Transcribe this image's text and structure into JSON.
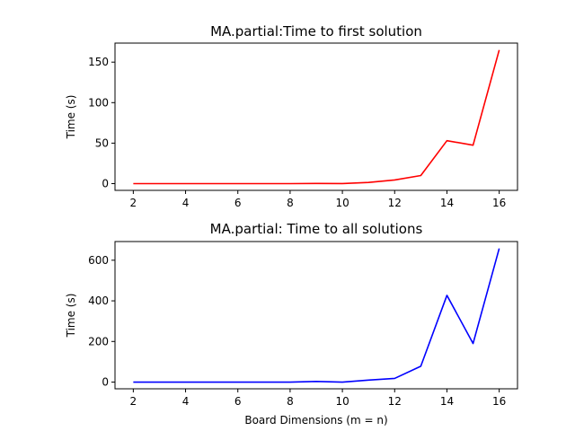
{
  "chart_data": [
    {
      "type": "line",
      "title": "MA.partial:Time to first solution",
      "xlabel": "",
      "ylabel": "Time (s)",
      "xlim": [
        1.3,
        16.7
      ],
      "ylim": [
        -8.3,
        173.5
      ],
      "xticks": [
        2,
        4,
        6,
        8,
        10,
        12,
        14,
        16
      ],
      "yticks": [
        0,
        50,
        100,
        150
      ],
      "color": "#ff0000",
      "series": [
        {
          "x": [
            2,
            3,
            4,
            5,
            6,
            7,
            8,
            9,
            10,
            11,
            12,
            13,
            14,
            15,
            16
          ],
          "y": [
            0,
            0,
            0,
            0,
            0,
            0,
            0,
            0.2,
            0.1,
            1.5,
            4.5,
            10,
            53,
            47.5,
            165
          ]
        }
      ]
    },
    {
      "type": "line",
      "title": "MA.partial: Time to all solutions",
      "xlabel": "Board Dimensions (m = n)",
      "ylabel": "Time (s)",
      "xlim": [
        1.3,
        16.7
      ],
      "ylim": [
        -33,
        692
      ],
      "xticks": [
        2,
        4,
        6,
        8,
        10,
        12,
        14,
        16
      ],
      "yticks": [
        0,
        200,
        400,
        600
      ],
      "color": "#0000ff",
      "series": [
        {
          "x": [
            2,
            3,
            4,
            5,
            6,
            7,
            8,
            9,
            10,
            11,
            12,
            13,
            14,
            15,
            16
          ],
          "y": [
            0,
            0,
            0,
            0,
            0,
            0,
            0,
            3,
            0,
            10,
            18,
            78,
            427,
            190,
            658
          ]
        }
      ]
    }
  ]
}
